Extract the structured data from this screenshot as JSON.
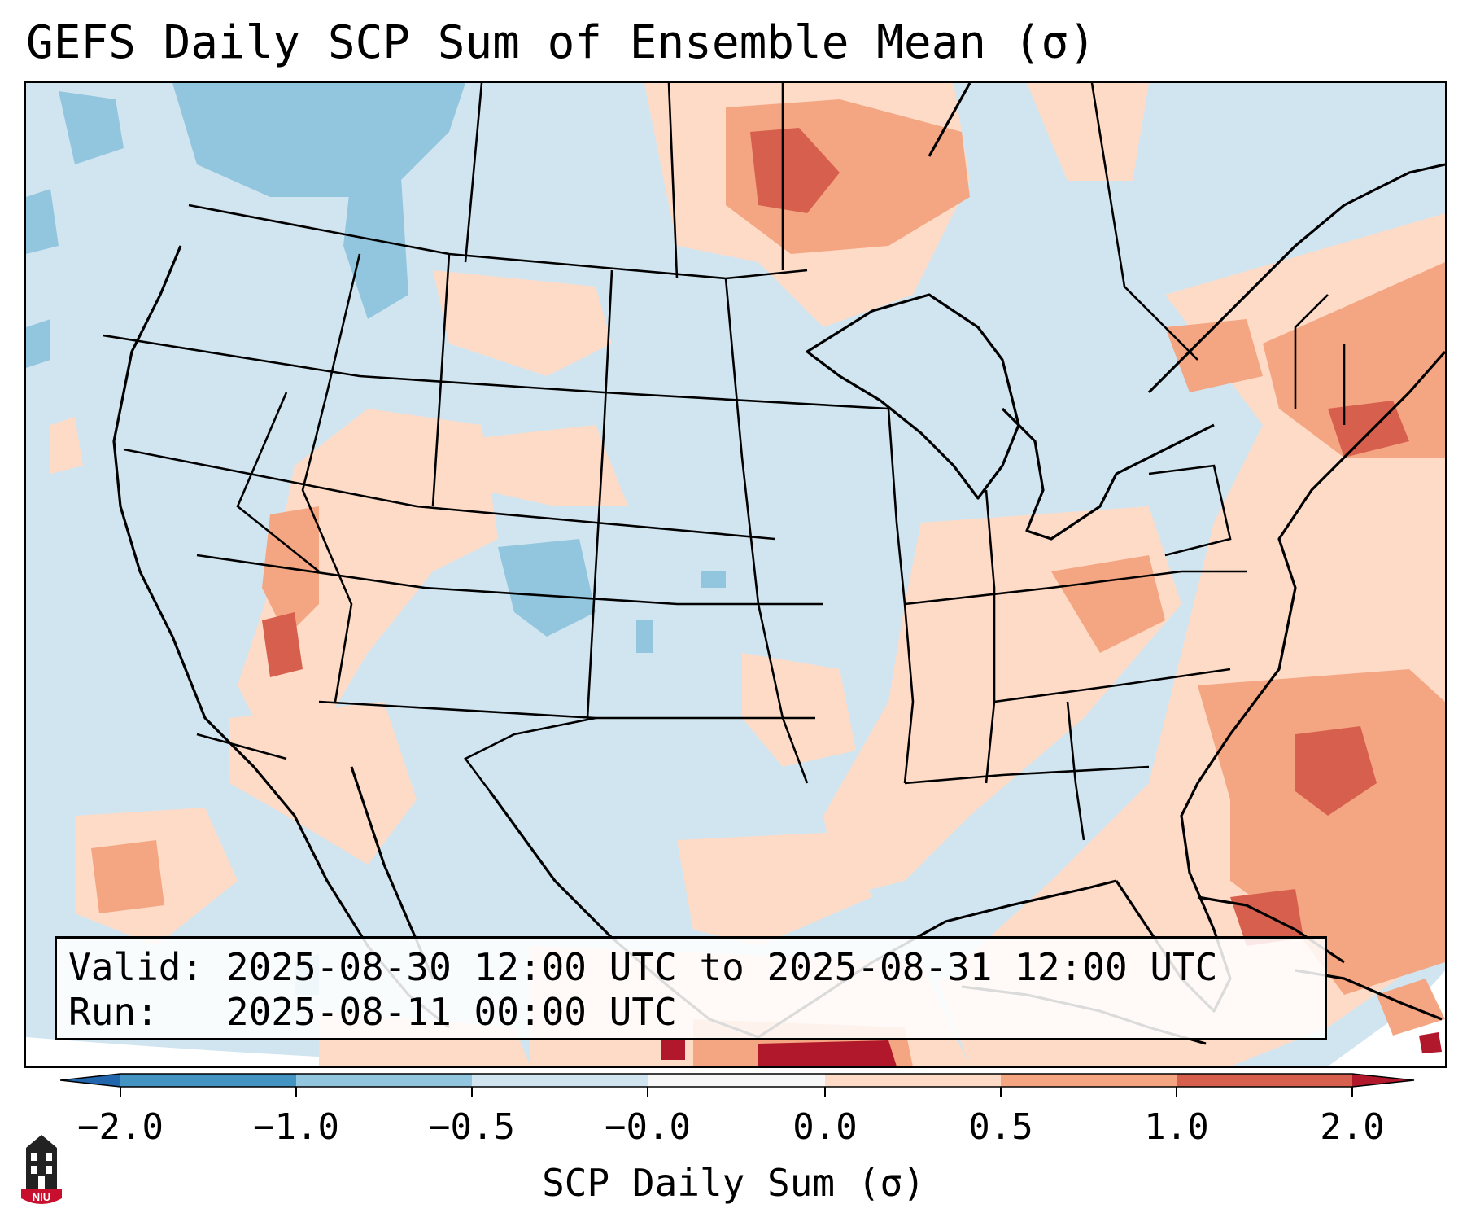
{
  "title": "GEFS Daily SCP Sum of Ensemble Mean (σ)",
  "info": {
    "valid_label": "Valid:",
    "valid_value": "2025-08-30 12:00 UTC to 2025-08-31 12:00 UTC",
    "run_label": "Run:",
    "run_value": "2025-08-11 00:00 UTC"
  },
  "colorbar": {
    "label": "SCP Daily Sum (σ)",
    "tick_labels": [
      "−2.0",
      "−1.0",
      "−0.5",
      "−0.0",
      "0.0",
      "0.5",
      "1.0",
      "2.0"
    ],
    "bins": [
      {
        "color": "#2166ac"
      },
      {
        "color": "#4393c3"
      },
      {
        "color": "#92c5de"
      },
      {
        "color": "#d1e5f0"
      },
      {
        "color": "#f7f7f7"
      },
      {
        "color": "#fddbc7"
      },
      {
        "color": "#f4a582"
      },
      {
        "color": "#d6604d"
      },
      {
        "color": "#b2182b"
      }
    ]
  },
  "logo": {
    "text": "NIU",
    "color": "#c8102e"
  }
}
